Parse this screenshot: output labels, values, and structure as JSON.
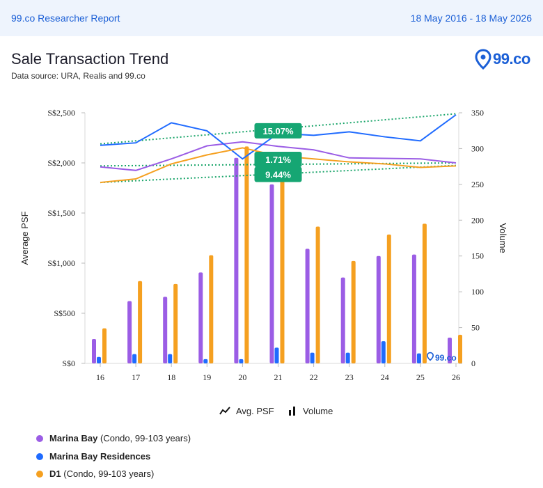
{
  "header": {
    "brand": "99.co Researcher Report",
    "date_range": "18 May 2016 - 18 May 2026"
  },
  "report": {
    "title": "Sale Transaction Trend",
    "source": "Data source: URA, Realis and 99.co"
  },
  "logo": {
    "text": "99.co",
    "icon": "location-pin-icon",
    "watermark_text": "99.co"
  },
  "toggles": [
    {
      "label": "Avg. PSF",
      "icon": "line-chart-icon"
    },
    {
      "label": "Volume",
      "icon": "bar-chart-icon"
    }
  ],
  "series_legend": [
    {
      "name": "Marina Bay",
      "detail": "(Condo, 99-103 years)",
      "color": "#9b5de5"
    },
    {
      "name": "Marina Bay Residences",
      "detail": "",
      "color": "#1f6bff"
    },
    {
      "name": "D1",
      "detail": "(Condo, 99-103 years)",
      "color": "#f5a020"
    }
  ],
  "chart_data": {
    "type": "bar",
    "categories": [
      "16",
      "17",
      "18",
      "19",
      "20",
      "21",
      "22",
      "23",
      "24",
      "25",
      "26"
    ],
    "y_left": {
      "label": "Average PSF",
      "range": [
        0,
        2500
      ],
      "ticks": [
        0,
        500,
        1000,
        1500,
        2000,
        2500
      ],
      "tick_labels": [
        "S$0",
        "S$500",
        "S$1,000",
        "S$1,500",
        "S$2,000",
        "S$2,500"
      ]
    },
    "y_right": {
      "label": "Volume",
      "range": [
        0,
        350
      ],
      "ticks": [
        0,
        50,
        100,
        150,
        200,
        250,
        300,
        350
      ]
    },
    "grid": false,
    "volume_series": [
      {
        "name": "Marina Bay",
        "color": "#9b5de5",
        "values": [
          34,
          87,
          93,
          127,
          287,
          250,
          160,
          120,
          150,
          152,
          36
        ]
      },
      {
        "name": "Marina Bay Residences",
        "color": "#1f6bff",
        "values": [
          9,
          13,
          13,
          6,
          6,
          22,
          15,
          15,
          31,
          14,
          0
        ]
      },
      {
        "name": "D1",
        "color": "#f5a020",
        "values": [
          49,
          115,
          111,
          151,
          303,
          270,
          191,
          143,
          180,
          195,
          40
        ]
      }
    ],
    "psf_series": [
      {
        "name": "Marina Bay",
        "color": "#9b5de5",
        "values": [
          1960,
          1925,
          2040,
          2170,
          2210,
          2165,
          2130,
          2050,
          2045,
          2040,
          2000
        ]
      },
      {
        "name": "Marina Bay Residences",
        "color": "#1f6bff",
        "values": [
          2175,
          2200,
          2400,
          2320,
          2040,
          2295,
          2275,
          2310,
          2260,
          2220,
          2480
        ]
      },
      {
        "name": "D1",
        "color": "#f5a020",
        "values": [
          1805,
          1840,
          1990,
          2080,
          2150,
          2070,
          2040,
          2010,
          1990,
          1955,
          1970
        ]
      }
    ],
    "trendlines": [
      {
        "series": "Marina Bay Residences",
        "from": 2190,
        "to": 2490
      },
      {
        "series": "Marina Bay",
        "from": 1970,
        "to": 2000
      },
      {
        "series": "D1",
        "from": 1805,
        "to": 1975
      }
    ],
    "annotations": [
      {
        "text": "15.07%",
        "x": 21,
        "y": 2320
      },
      {
        "text": "1.71%",
        "x": 21,
        "y": 2035
      },
      {
        "text": "9.44%",
        "x": 21,
        "y": 1885
      }
    ]
  }
}
